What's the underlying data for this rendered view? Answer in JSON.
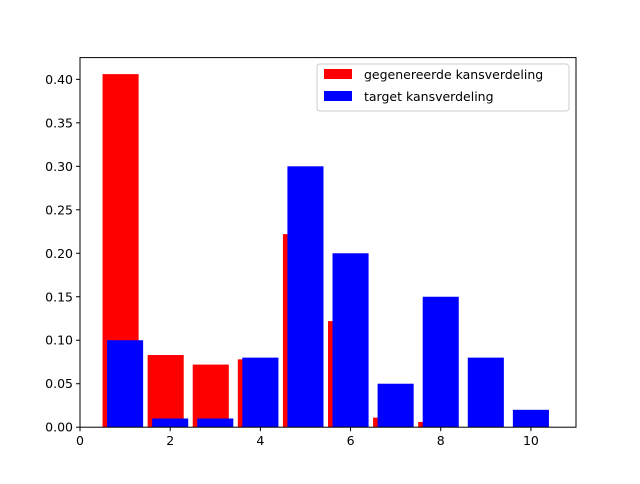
{
  "chart_data": {
    "type": "bar",
    "title": "",
    "xlabel": "",
    "ylabel": "",
    "xlim": [
      0,
      11
    ],
    "ylim": [
      0,
      0.425
    ],
    "xticks": [
      "0",
      "2",
      "4",
      "6",
      "8",
      "10"
    ],
    "xtick_values": [
      0,
      2,
      4,
      6,
      8,
      10
    ],
    "yticks": [
      "0.00",
      "0.05",
      "0.10",
      "0.15",
      "0.20",
      "0.25",
      "0.30",
      "0.35",
      "0.40"
    ],
    "ytick_values": [
      0,
      0.05,
      0.1,
      0.15,
      0.2,
      0.25,
      0.3,
      0.35,
      0.4
    ],
    "grid": false,
    "legend_position": "top-right",
    "series": [
      {
        "name": "gegenereerde kansverdeling",
        "color": "#ff0000",
        "x": [
          1,
          2,
          3,
          4,
          5,
          6,
          7,
          8,
          9,
          10
        ],
        "values": [
          0.406,
          0.083,
          0.072,
          0.078,
          0.222,
          0.122,
          0.011,
          0.006,
          0.0,
          0.0
        ]
      },
      {
        "name": "target kansverdeling",
        "color": "#0000ff",
        "x": [
          1,
          2,
          3,
          4,
          5,
          6,
          7,
          8,
          9,
          10
        ],
        "values": [
          0.1,
          0.01,
          0.01,
          0.08,
          0.3,
          0.2,
          0.05,
          0.15,
          0.08,
          0.02
        ]
      }
    ]
  }
}
